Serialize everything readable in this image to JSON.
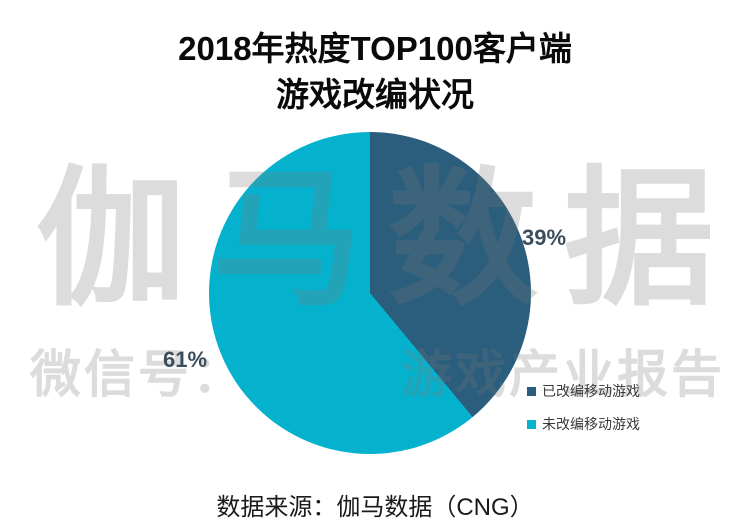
{
  "title": {
    "line1": "2018年热度TOP100客户端",
    "line2": "游戏改编状况"
  },
  "watermark": {
    "brand": "伽马数据",
    "wechat_prefix": "微信号：",
    "wechat_suffix": "游戏产业报告"
  },
  "chart_data": {
    "type": "pie",
    "title": "2018年热度TOP100客户端游戏改编状况",
    "start_angle_deg": 0,
    "direction": "clockwise",
    "legend_position": "right",
    "slices": [
      {
        "label": "已改编移动游戏",
        "value": 39,
        "percent_label": "39%",
        "color": "#2b5e7d"
      },
      {
        "label": "未改编移动游戏",
        "value": 61,
        "percent_label": "61%",
        "color": "#05b2ce"
      }
    ]
  },
  "footer": {
    "source": "数据来源：伽马数据（CNG）"
  }
}
